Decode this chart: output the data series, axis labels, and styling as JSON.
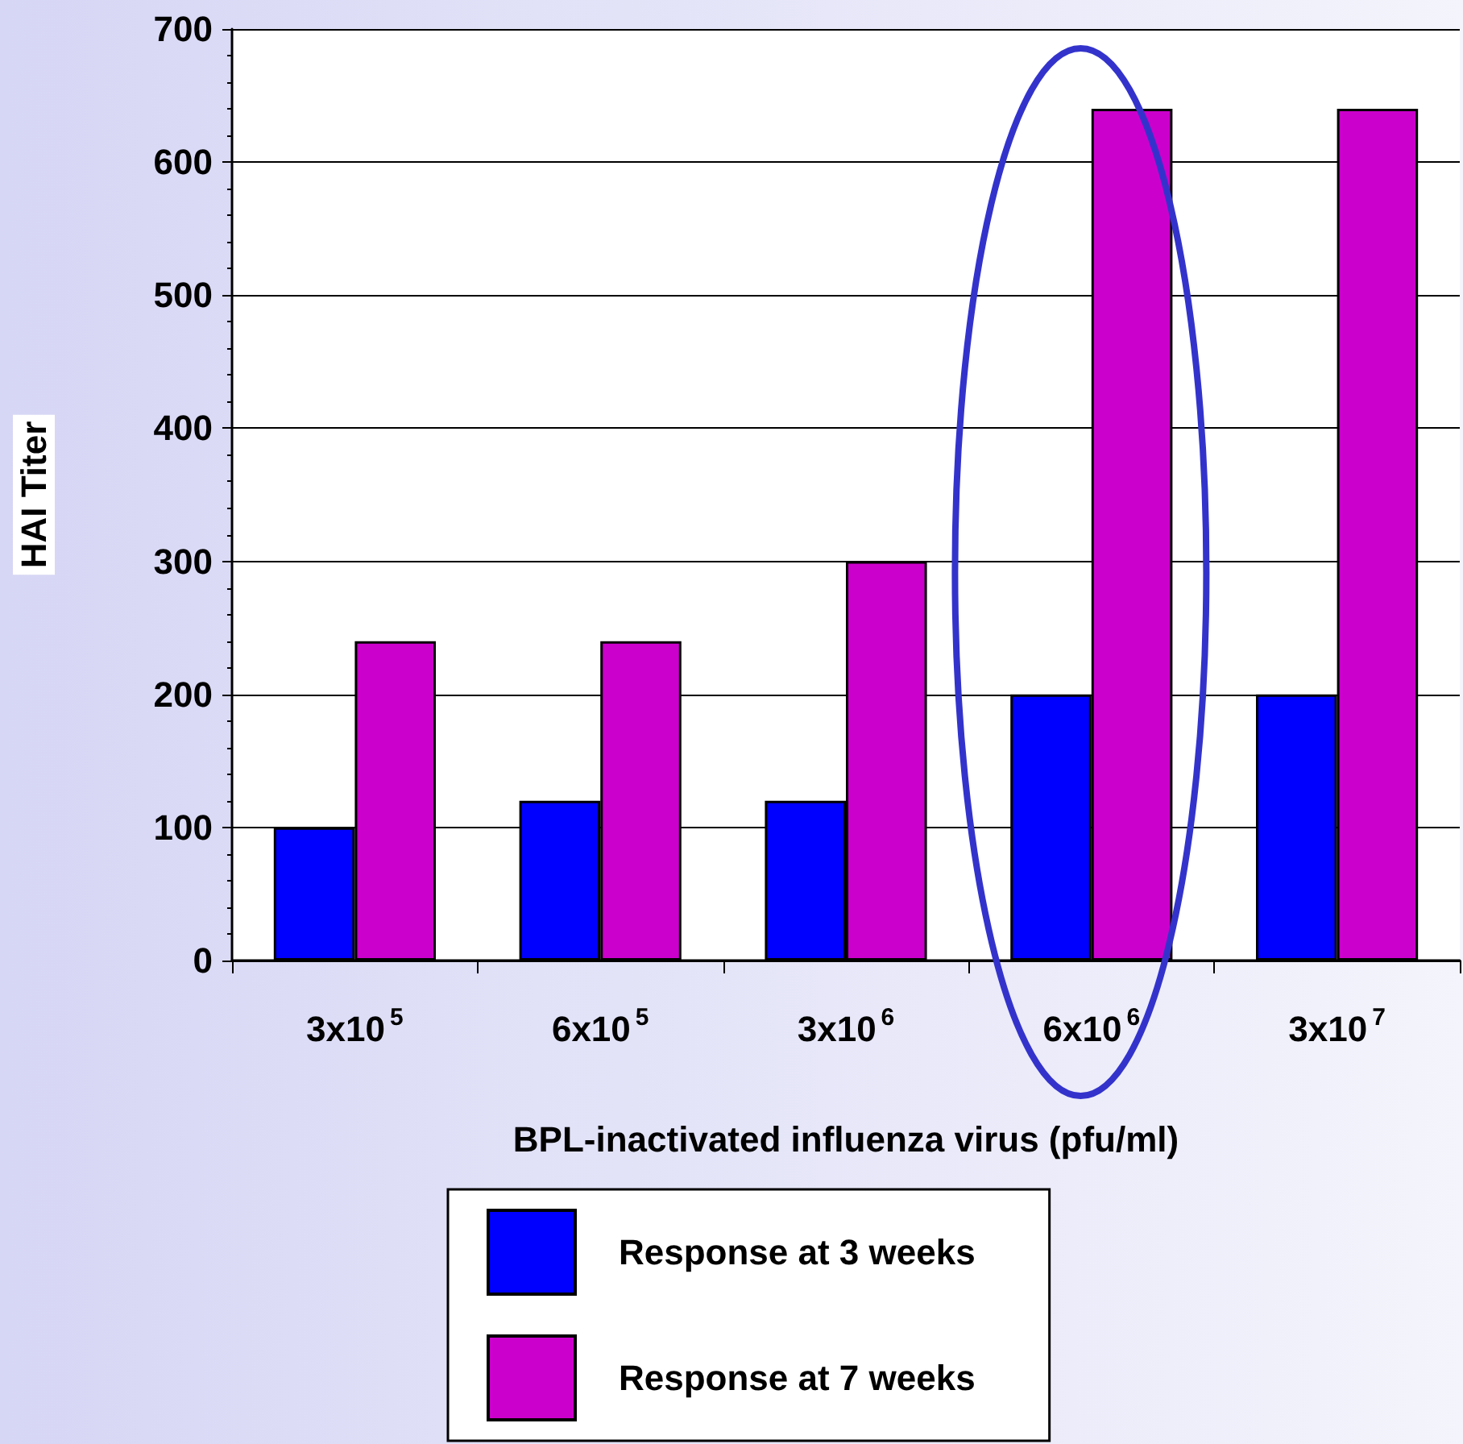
{
  "chart_data": {
    "type": "bar",
    "xlabel": "BPL-inactivated influenza virus (pfu/ml)",
    "ylabel": "HAI Titer",
    "categories": [
      "3x10$^{5}$",
      "6x10$^{5}$",
      "3x10$^{6}$",
      "6x10$^{6}$",
      "3x10$^{7}$"
    ],
    "series": [
      {
        "name": "Response at 3 weeks",
        "color": "#0000ff",
        "values": [
          100,
          120,
          120,
          200,
          200
        ]
      },
      {
        "name": "Response at 7 weeks",
        "color": "#cc00cc",
        "values": [
          240,
          240,
          300,
          640,
          640
        ]
      }
    ],
    "ylim": [
      0,
      700
    ],
    "yticks": [
      0,
      100,
      200,
      300,
      400,
      500,
      600,
      700
    ],
    "grid": "y",
    "legend": "bottom"
  }
}
